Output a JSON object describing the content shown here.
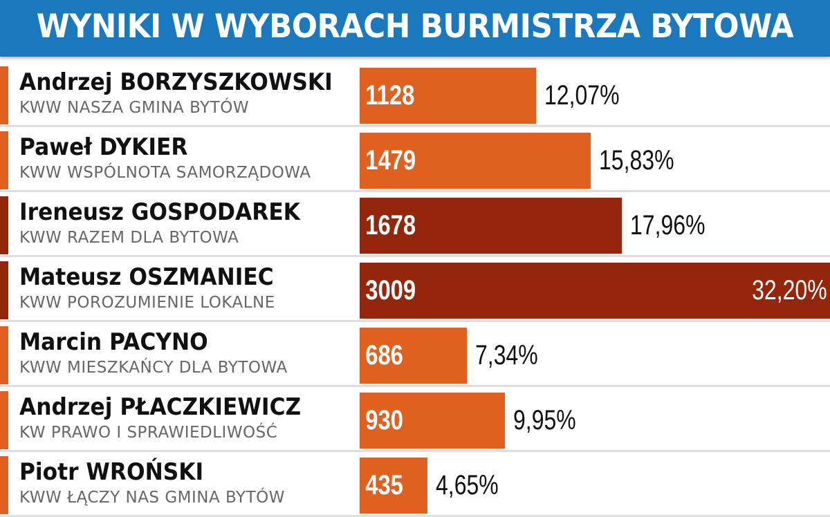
{
  "title": "WYNIKI W WYBORACH BURMISTRZA BYTOWA",
  "colors": {
    "header": "#1a78bf",
    "orange": "#e0611f",
    "dark_red": "#93260b"
  },
  "chart_data": {
    "type": "bar",
    "orientation": "horizontal",
    "categories": [
      "Andrzej BORZYSZKOWSKI",
      "Paweł DYKIER",
      "Ireneusz GOSPODAREK",
      "Mateusz OSZMANIEC",
      "Marcin PACYNO",
      "Andrzej PŁACZKIEWICZ",
      "Piotr WROŃSKI"
    ],
    "subtitles": [
      "KWW NASZA GMINA BYTÓW",
      "KWW WSPÓLNOTA SAMORZĄDOWA",
      "KWW RAZEM DLA BYTOWA",
      "KWW POROZUMIENIE LOKALNE",
      "KWW MIESZKAŃCY DLA BYTOWA",
      "KW PRAWO I SPRAWIEDLIWOŚĆ",
      "KWW ŁĄCZY NAS GMINA BYTÓW"
    ],
    "values": [
      1128,
      1479,
      1678,
      3009,
      686,
      930,
      435
    ],
    "value_labels": [
      "1128",
      "1479",
      "1678",
      "3009",
      "686",
      "930",
      "435"
    ],
    "percent_labels": [
      "12,07%",
      "15,83%",
      "17,96%",
      "32,20%",
      "7,34%",
      "9,95%",
      "4,65%"
    ],
    "highlighted": [
      false,
      false,
      true,
      true,
      false,
      false,
      false
    ],
    "xlim": [
      0,
      3009
    ]
  }
}
